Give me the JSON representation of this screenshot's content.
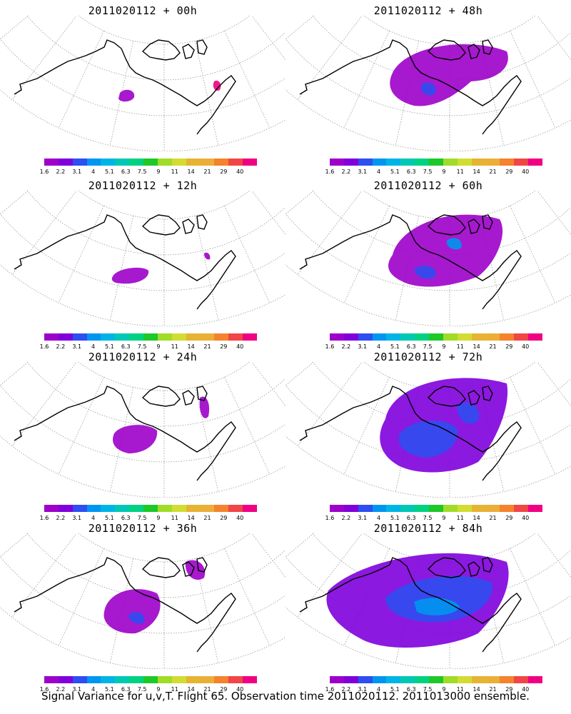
{
  "colorbar": {
    "colors": [
      "#9d00c9",
      "#7f00dc",
      "#2d4ef0",
      "#0096f0",
      "#00b4e6",
      "#00c8b4",
      "#00d282",
      "#1ec828",
      "#a0dc28",
      "#d2dc32",
      "#e6b432",
      "#ebaf37",
      "#f5822d",
      "#f04646",
      "#f00082"
    ],
    "labels": [
      "1.6",
      "2.2",
      "3.1",
      "4",
      "5.1",
      "6.3",
      "7.5",
      "9",
      "11",
      "14",
      "21",
      "29",
      "40"
    ]
  },
  "panels": [
    {
      "title": "2011020112 + 00h"
    },
    {
      "title": "2011020112 + 48h"
    },
    {
      "title": "2011020112 + 12h"
    },
    {
      "title": "2011020112 + 60h"
    },
    {
      "title": "2011020112 + 24h"
    },
    {
      "title": "2011020112 + 72h"
    },
    {
      "title": "2011020112 + 36h"
    },
    {
      "title": "2011020112 + 84h"
    }
  ],
  "caption": "Signal Variance for u,v,T. Flight 65. Observation time 2011020112. 2011013000 ensemble."
}
